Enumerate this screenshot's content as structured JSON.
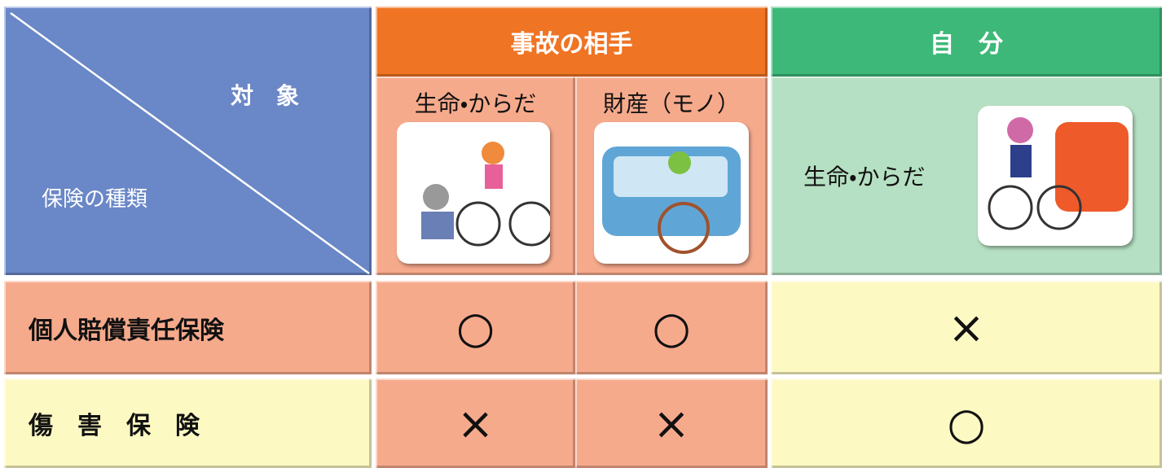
{
  "header": {
    "corner_top": "対　象",
    "corner_bottom": "保険の種類",
    "opponent": "事故の相手",
    "self": "自　分",
    "opponent_body": "生命・からだ",
    "opponent_property": "財産（モノ）",
    "self_body": "生命・からだ"
  },
  "rows": [
    {
      "label": "個人賠償責任保険",
      "cells": [
        "○",
        "○",
        "×"
      ]
    },
    {
      "label": "傷　害　保　険",
      "cells": [
        "×",
        "×",
        "○"
      ]
    }
  ]
}
